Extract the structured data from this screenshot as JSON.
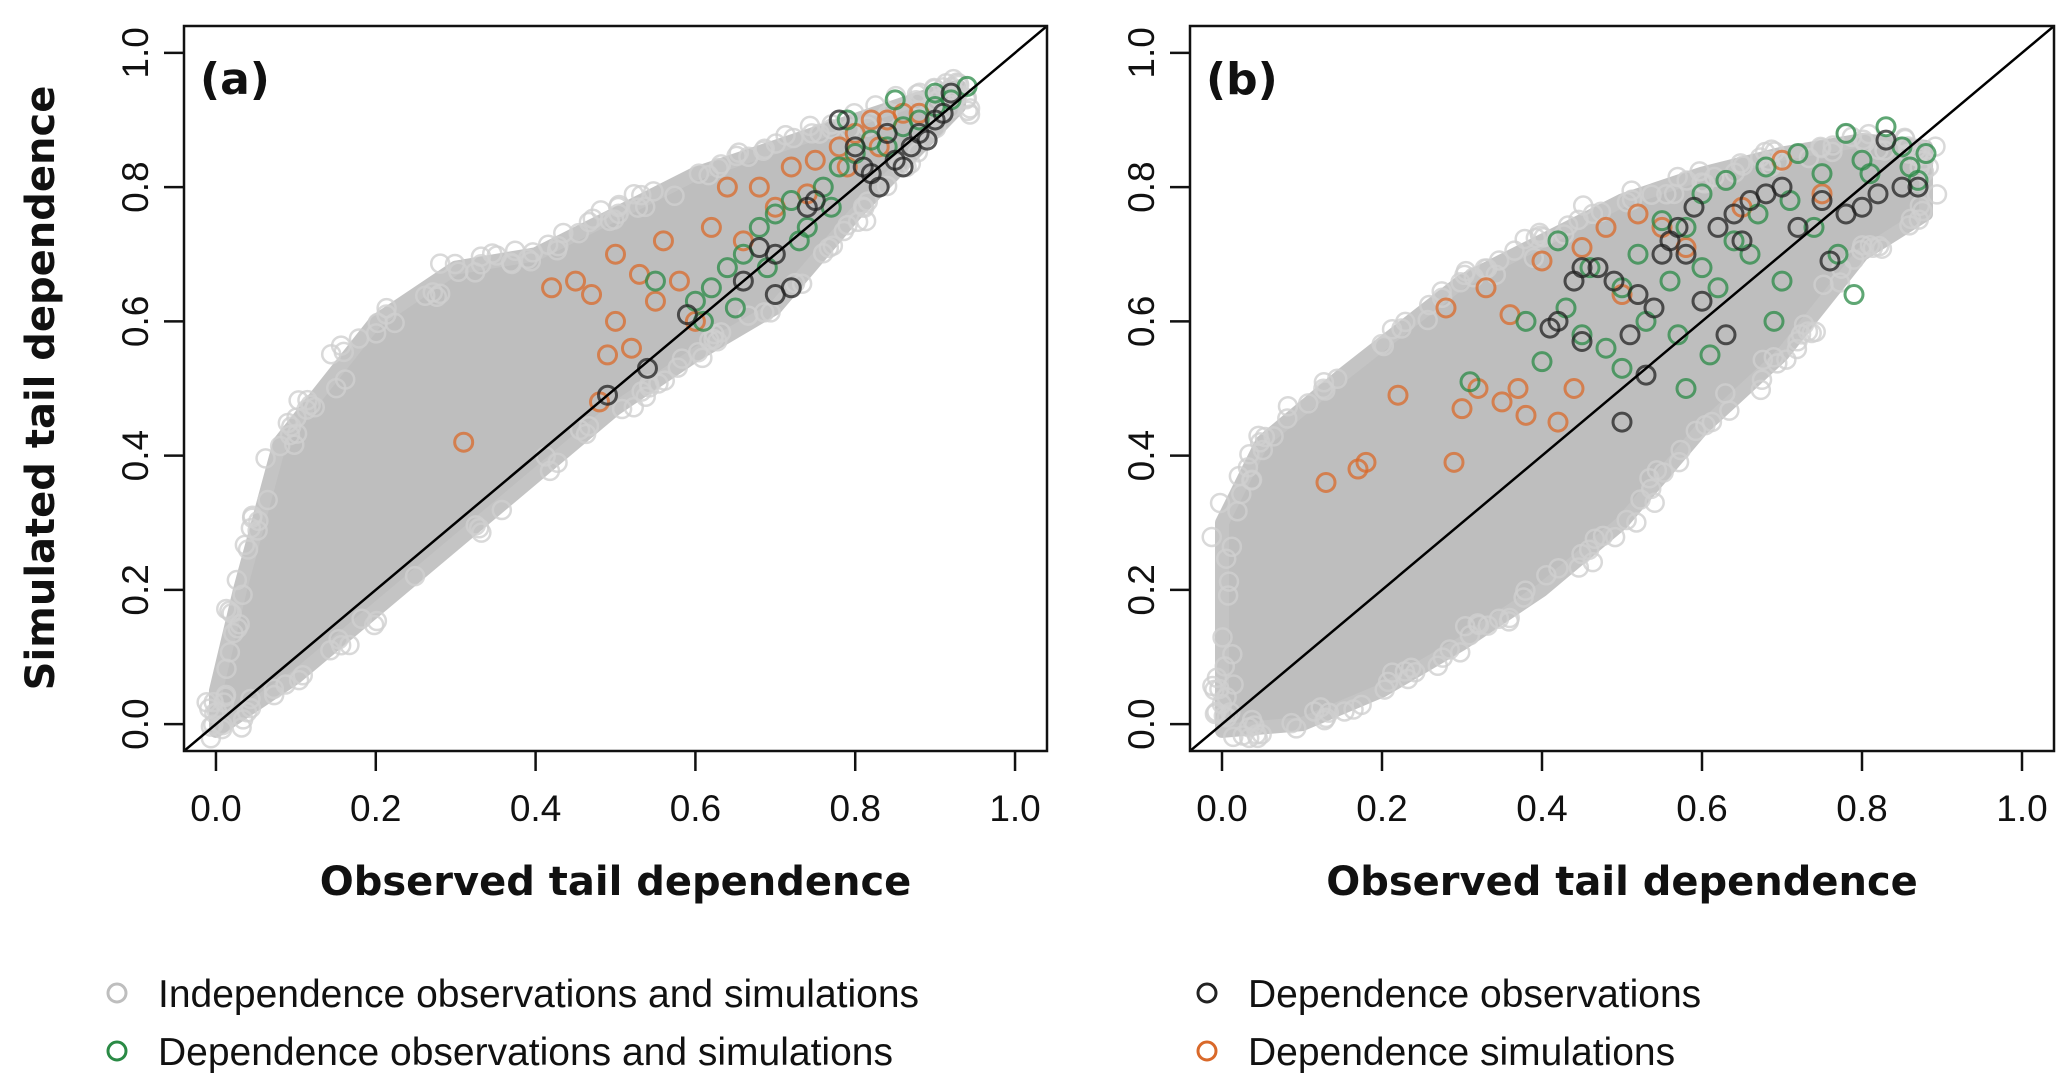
{
  "chart_data": [
    {
      "type": "scatter",
      "panel_label": "(a)",
      "xlabel": "Observed tail dependence",
      "ylabel": "Simulated tail dependence",
      "xlim": [
        -0.04,
        1.04
      ],
      "ylim": [
        -0.04,
        1.04
      ],
      "xticks": [
        "0.0",
        "0.2",
        "0.4",
        "0.6",
        "0.8",
        "1.0"
      ],
      "yticks": [
        "0.0",
        "0.2",
        "0.4",
        "0.6",
        "0.8",
        "1.0"
      ],
      "reference_line": "y = x",
      "independence_cloud_envelope": [
        [
          0,
          0.05
        ],
        [
          0.03,
          0.2
        ],
        [
          0.08,
          0.42
        ],
        [
          0.12,
          0.48
        ],
        [
          0.2,
          0.6
        ],
        [
          0.3,
          0.68
        ],
        [
          0.4,
          0.7
        ],
        [
          0.5,
          0.76
        ],
        [
          0.6,
          0.82
        ],
        [
          0.7,
          0.86
        ],
        [
          0.8,
          0.9
        ],
        [
          0.9,
          0.94
        ],
        [
          0.93,
          0.95
        ],
        [
          0.93,
          0.92
        ],
        [
          0.8,
          0.76
        ],
        [
          0.7,
          0.62
        ],
        [
          0.6,
          0.55
        ],
        [
          0.5,
          0.47
        ],
        [
          0.3,
          0.27
        ],
        [
          0.1,
          0.07
        ],
        [
          0,
          -0.01
        ]
      ],
      "series": [
        {
          "name": "Dependence simulations",
          "color": "#d9692a",
          "points": [
            [
              0.42,
              0.65
            ],
            [
              0.45,
              0.66
            ],
            [
              0.47,
              0.64
            ],
            [
              0.5,
              0.7
            ],
            [
              0.5,
              0.6
            ],
            [
              0.49,
              0.55
            ],
            [
              0.52,
              0.56
            ],
            [
              0.55,
              0.63
            ],
            [
              0.56,
              0.72
            ],
            [
              0.58,
              0.66
            ],
            [
              0.6,
              0.6
            ],
            [
              0.62,
              0.74
            ],
            [
              0.64,
              0.8
            ],
            [
              0.66,
              0.72
            ],
            [
              0.7,
              0.77
            ],
            [
              0.72,
              0.83
            ],
            [
              0.75,
              0.84
            ],
            [
              0.78,
              0.86
            ],
            [
              0.8,
              0.88
            ],
            [
              0.82,
              0.9
            ],
            [
              0.84,
              0.9
            ],
            [
              0.86,
              0.91
            ],
            [
              0.31,
              0.42
            ],
            [
              0.48,
              0.48
            ],
            [
              0.53,
              0.67
            ],
            [
              0.68,
              0.8
            ],
            [
              0.74,
              0.79
            ],
            [
              0.79,
              0.83
            ],
            [
              0.83,
              0.86
            ],
            [
              0.88,
              0.91
            ]
          ]
        },
        {
          "name": "Dependence observations and simulations",
          "color": "#2a8a45",
          "points": [
            [
              0.6,
              0.63
            ],
            [
              0.62,
              0.65
            ],
            [
              0.64,
              0.68
            ],
            [
              0.66,
              0.7
            ],
            [
              0.68,
              0.74
            ],
            [
              0.7,
              0.76
            ],
            [
              0.72,
              0.78
            ],
            [
              0.74,
              0.74
            ],
            [
              0.76,
              0.8
            ],
            [
              0.78,
              0.83
            ],
            [
              0.8,
              0.85
            ],
            [
              0.82,
              0.87
            ],
            [
              0.84,
              0.86
            ],
            [
              0.86,
              0.89
            ],
            [
              0.88,
              0.9
            ],
            [
              0.9,
              0.92
            ],
            [
              0.92,
              0.93
            ],
            [
              0.94,
              0.95
            ],
            [
              0.65,
              0.62
            ],
            [
              0.69,
              0.68
            ],
            [
              0.73,
              0.72
            ],
            [
              0.77,
              0.77
            ],
            [
              0.55,
              0.66
            ],
            [
              0.61,
              0.6
            ],
            [
              0.79,
              0.9
            ],
            [
              0.85,
              0.93
            ],
            [
              0.9,
              0.94
            ]
          ]
        },
        {
          "name": "Dependence observations",
          "color": "#222222",
          "points": [
            [
              0.78,
              0.9
            ],
            [
              0.8,
              0.86
            ],
            [
              0.82,
              0.82
            ],
            [
              0.85,
              0.84
            ],
            [
              0.87,
              0.86
            ],
            [
              0.88,
              0.88
            ],
            [
              0.9,
              0.9
            ],
            [
              0.92,
              0.94
            ],
            [
              0.83,
              0.8
            ],
            [
              0.86,
              0.83
            ],
            [
              0.89,
              0.87
            ],
            [
              0.75,
              0.78
            ],
            [
              0.7,
              0.7
            ],
            [
              0.68,
              0.71
            ],
            [
              0.72,
              0.65
            ],
            [
              0.7,
              0.64
            ],
            [
              0.66,
              0.66
            ],
            [
              0.59,
              0.61
            ],
            [
              0.54,
              0.53
            ],
            [
              0.49,
              0.49
            ],
            [
              0.74,
              0.77
            ],
            [
              0.81,
              0.83
            ],
            [
              0.84,
              0.88
            ],
            [
              0.91,
              0.91
            ]
          ]
        }
      ]
    },
    {
      "type": "scatter",
      "panel_label": "(b)",
      "xlabel": "Observed tail dependence",
      "ylabel": "",
      "xlim": [
        -0.04,
        1.04
      ],
      "ylim": [
        -0.04,
        1.04
      ],
      "xticks": [
        "0.0",
        "0.2",
        "0.4",
        "0.6",
        "0.8",
        "1.0"
      ],
      "yticks": [
        "0.0",
        "0.2",
        "0.4",
        "0.6",
        "0.8",
        "1.0"
      ],
      "reference_line": "y = x",
      "independence_cloud_envelope": [
        [
          0,
          0.05
        ],
        [
          0,
          0.3
        ],
        [
          0.05,
          0.42
        ],
        [
          0.15,
          0.52
        ],
        [
          0.3,
          0.66
        ],
        [
          0.4,
          0.72
        ],
        [
          0.5,
          0.78
        ],
        [
          0.6,
          0.82
        ],
        [
          0.7,
          0.85
        ],
        [
          0.8,
          0.87
        ],
        [
          0.88,
          0.86
        ],
        [
          0.88,
          0.76
        ],
        [
          0.8,
          0.7
        ],
        [
          0.7,
          0.55
        ],
        [
          0.6,
          0.44
        ],
        [
          0.5,
          0.3
        ],
        [
          0.4,
          0.2
        ],
        [
          0.3,
          0.12
        ],
        [
          0.2,
          0.05
        ],
        [
          0.1,
          0.0
        ],
        [
          0,
          -0.01
        ]
      ],
      "series": [
        {
          "name": "Dependence simulations",
          "color": "#d9692a",
          "points": [
            [
              0.13,
              0.36
            ],
            [
              0.17,
              0.38
            ],
            [
              0.18,
              0.39
            ],
            [
              0.22,
              0.49
            ],
            [
              0.29,
              0.39
            ],
            [
              0.3,
              0.47
            ],
            [
              0.32,
              0.5
            ],
            [
              0.35,
              0.48
            ],
            [
              0.37,
              0.5
            ],
            [
              0.38,
              0.46
            ],
            [
              0.42,
              0.45
            ],
            [
              0.28,
              0.62
            ],
            [
              0.33,
              0.65
            ],
            [
              0.36,
              0.61
            ],
            [
              0.4,
              0.69
            ],
            [
              0.45,
              0.71
            ],
            [
              0.48,
              0.74
            ],
            [
              0.52,
              0.76
            ],
            [
              0.55,
              0.74
            ],
            [
              0.58,
              0.71
            ],
            [
              0.5,
              0.64
            ],
            [
              0.44,
              0.5
            ],
            [
              0.7,
              0.84
            ],
            [
              0.75,
              0.79
            ],
            [
              0.65,
              0.77
            ]
          ]
        },
        {
          "name": "Dependence observations and simulations",
          "color": "#2a8a45",
          "points": [
            [
              0.31,
              0.51
            ],
            [
              0.38,
              0.6
            ],
            [
              0.4,
              0.54
            ],
            [
              0.42,
              0.72
            ],
            [
              0.43,
              0.62
            ],
            [
              0.45,
              0.58
            ],
            [
              0.46,
              0.68
            ],
            [
              0.48,
              0.56
            ],
            [
              0.5,
              0.65
            ],
            [
              0.5,
              0.53
            ],
            [
              0.52,
              0.7
            ],
            [
              0.53,
              0.6
            ],
            [
              0.55,
              0.75
            ],
            [
              0.56,
              0.66
            ],
            [
              0.57,
              0.58
            ],
            [
              0.58,
              0.74
            ],
            [
              0.6,
              0.79
            ],
            [
              0.6,
              0.68
            ],
            [
              0.62,
              0.65
            ],
            [
              0.63,
              0.81
            ],
            [
              0.64,
              0.72
            ],
            [
              0.66,
              0.7
            ],
            [
              0.67,
              0.76
            ],
            [
              0.68,
              0.83
            ],
            [
              0.7,
              0.66
            ],
            [
              0.71,
              0.78
            ],
            [
              0.72,
              0.85
            ],
            [
              0.74,
              0.74
            ],
            [
              0.75,
              0.82
            ],
            [
              0.77,
              0.7
            ],
            [
              0.78,
              0.88
            ],
            [
              0.8,
              0.84
            ],
            [
              0.81,
              0.82
            ],
            [
              0.83,
              0.89
            ],
            [
              0.85,
              0.86
            ],
            [
              0.86,
              0.83
            ],
            [
              0.87,
              0.81
            ],
            [
              0.88,
              0.85
            ],
            [
              0.79,
              0.64
            ],
            [
              0.69,
              0.6
            ],
            [
              0.58,
              0.5
            ],
            [
              0.61,
              0.55
            ]
          ]
        },
        {
          "name": "Dependence observations",
          "color": "#222222",
          "points": [
            [
              0.41,
              0.59
            ],
            [
              0.42,
              0.6
            ],
            [
              0.44,
              0.66
            ],
            [
              0.45,
              0.57
            ],
            [
              0.47,
              0.68
            ],
            [
              0.49,
              0.66
            ],
            [
              0.5,
              0.45
            ],
            [
              0.51,
              0.58
            ],
            [
              0.52,
              0.64
            ],
            [
              0.53,
              0.52
            ],
            [
              0.54,
              0.62
            ],
            [
              0.55,
              0.7
            ],
            [
              0.56,
              0.72
            ],
            [
              0.57,
              0.74
            ],
            [
              0.58,
              0.7
            ],
            [
              0.59,
              0.77
            ],
            [
              0.6,
              0.63
            ],
            [
              0.62,
              0.74
            ],
            [
              0.64,
              0.76
            ],
            [
              0.65,
              0.72
            ],
            [
              0.66,
              0.78
            ],
            [
              0.68,
              0.79
            ],
            [
              0.7,
              0.8
            ],
            [
              0.72,
              0.74
            ],
            [
              0.75,
              0.78
            ],
            [
              0.76,
              0.69
            ],
            [
              0.78,
              0.76
            ],
            [
              0.8,
              0.77
            ],
            [
              0.82,
              0.79
            ],
            [
              0.83,
              0.87
            ],
            [
              0.85,
              0.8
            ],
            [
              0.87,
              0.8
            ],
            [
              0.63,
              0.58
            ],
            [
              0.45,
              0.68
            ]
          ]
        }
      ]
    }
  ],
  "legend": {
    "placement": "bottom",
    "items": [
      {
        "label": "Independence observations and simulations",
        "color": "#bebebe"
      },
      {
        "label": "Dependence observations and simulations",
        "color": "#2a8a45"
      },
      {
        "label": "Dependence observations",
        "color": "#222222"
      },
      {
        "label": "Dependence simulations",
        "color": "#d9692a"
      }
    ]
  },
  "colors": {
    "independence": "#bebebe",
    "axis": "#111111"
  }
}
